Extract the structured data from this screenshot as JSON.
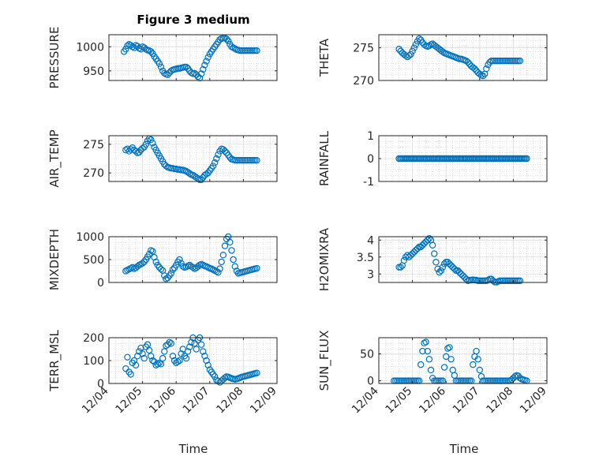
{
  "figure": {
    "title": "Figure 3 medium"
  },
  "colors": {
    "marker": "#0072BD",
    "axis": "#262626",
    "grid": "#c8c8c8"
  },
  "x_axis": {
    "label": "Time",
    "tick_labels": [
      "12/04",
      "12/05",
      "12/06",
      "12/07",
      "12/08",
      "12/09"
    ]
  },
  "chart_data": [
    {
      "type": "scatter",
      "id": "pressure",
      "ylabel": "PRESSURE",
      "ylim": [
        930,
        1025
      ],
      "yticks": [
        950,
        1000
      ],
      "yticklabels": [
        "950",
        "1000"
      ],
      "xlim": [
        0,
        5
      ],
      "grid": true,
      "marker": "open-circle",
      "x": [
        0.45,
        0.5,
        0.55,
        0.6,
        0.65,
        0.7,
        0.75,
        0.8,
        0.85,
        0.9,
        0.95,
        1.0,
        1.05,
        1.1,
        1.15,
        1.2,
        1.25,
        1.3,
        1.35,
        1.4,
        1.45,
        1.5,
        1.55,
        1.6,
        1.65,
        1.7,
        1.75,
        1.8,
        1.85,
        1.9,
        1.95,
        2.0,
        2.05,
        2.1,
        2.15,
        2.2,
        2.25,
        2.3,
        2.35,
        2.4,
        2.45,
        2.5,
        2.55,
        2.6,
        2.65,
        2.7,
        2.75,
        2.8,
        2.85,
        2.9,
        2.95,
        3.0,
        3.05,
        3.1,
        3.15,
        3.2,
        3.25,
        3.3,
        3.35,
        3.4,
        3.45,
        3.5,
        3.55,
        3.6,
        3.65,
        3.7,
        3.75,
        3.8,
        3.85,
        3.9,
        3.95,
        4.0,
        4.05,
        4.1,
        4.15,
        4.2,
        4.25,
        4.3,
        4.35,
        4.4
      ],
      "y": [
        990,
        995,
        1002,
        1005,
        1003,
        1000,
        998,
        1003,
        1001,
        997,
        995,
        1000,
        998,
        995,
        993,
        992,
        990,
        986,
        980,
        975,
        970,
        965,
        958,
        950,
        945,
        943,
        942,
        946,
        950,
        952,
        953,
        954,
        955,
        955,
        956,
        957,
        958,
        958,
        955,
        950,
        946,
        944,
        945,
        942,
        938,
        935,
        944,
        953,
        962,
        970,
        978,
        985,
        990,
        995,
        1000,
        1005,
        1010,
        1015,
        1017,
        1018,
        1018,
        1016,
        1012,
        1005,
        1000,
        998,
        996,
        994,
        993,
        992,
        992,
        992,
        992,
        992,
        992,
        992,
        992,
        992,
        992,
        992
      ]
    },
    {
      "type": "scatter",
      "id": "theta",
      "ylabel": "THETA",
      "ylim": [
        270,
        277
      ],
      "yticks": [
        270,
        275
      ],
      "yticklabels": [
        "270",
        "275"
      ],
      "xlim": [
        0,
        5
      ],
      "grid": true,
      "marker": "open-circle",
      "x": [
        0.6,
        0.65,
        0.7,
        0.75,
        0.8,
        0.85,
        0.9,
        0.95,
        1.0,
        1.05,
        1.1,
        1.15,
        1.2,
        1.25,
        1.3,
        1.35,
        1.4,
        1.45,
        1.5,
        1.55,
        1.6,
        1.65,
        1.7,
        1.75,
        1.8,
        1.85,
        1.9,
        1.95,
        2.0,
        2.05,
        2.1,
        2.15,
        2.2,
        2.25,
        2.3,
        2.35,
        2.4,
        2.45,
        2.5,
        2.55,
        2.6,
        2.65,
        2.7,
        2.75,
        2.8,
        2.85,
        2.9,
        2.95,
        3.0,
        3.05,
        3.1,
        3.15,
        3.2,
        3.25,
        3.3,
        3.35,
        3.4,
        3.45,
        3.5,
        3.55,
        3.6,
        3.65,
        3.7,
        3.75,
        3.8,
        3.85,
        3.9,
        3.95,
        4.0,
        4.05,
        4.1,
        4.15,
        4.2
      ],
      "y": [
        274.8,
        274.5,
        274.2,
        274.0,
        273.8,
        273.6,
        273.8,
        274.0,
        274.5,
        275.0,
        275.5,
        276.0,
        276.4,
        276.2,
        275.8,
        275.5,
        275.3,
        275.2,
        275.3,
        275.5,
        275.6,
        275.4,
        275.2,
        275.0,
        274.8,
        274.6,
        274.4,
        274.2,
        274.1,
        274.0,
        273.9,
        273.8,
        273.7,
        273.6,
        273.5,
        273.4,
        273.3,
        273.3,
        273.2,
        273.1,
        273.0,
        272.8,
        272.5,
        272.2,
        272.0,
        271.8,
        271.5,
        271.2,
        271.0,
        270.8,
        270.7,
        271.0,
        271.8,
        272.4,
        272.8,
        273.0,
        273.0,
        273.0,
        273.0,
        273.0,
        273.0,
        273.0,
        273.0,
        273.0,
        273.0,
        273.0,
        273.0,
        273.0,
        273.0,
        273.0,
        273.0,
        273.0,
        273.0
      ]
    },
    {
      "type": "scatter",
      "id": "air-temp",
      "ylabel": "AIR_TEMP",
      "ylim": [
        268.5,
        276.5
      ],
      "yticks": [
        270,
        275
      ],
      "yticklabels": [
        "270",
        "275"
      ],
      "xlim": [
        0,
        5
      ],
      "grid": true,
      "marker": "open-circle",
      "x": [
        0.5,
        0.55,
        0.6,
        0.65,
        0.7,
        0.75,
        0.8,
        0.85,
        0.9,
        0.95,
        1.0,
        1.05,
        1.1,
        1.15,
        1.2,
        1.25,
        1.3,
        1.35,
        1.4,
        1.45,
        1.5,
        1.55,
        1.6,
        1.65,
        1.7,
        1.75,
        1.8,
        1.85,
        1.9,
        1.95,
        2.0,
        2.05,
        2.1,
        2.15,
        2.2,
        2.25,
        2.3,
        2.35,
        2.4,
        2.45,
        2.5,
        2.55,
        2.6,
        2.65,
        2.7,
        2.75,
        2.8,
        2.85,
        2.9,
        2.95,
        3.0,
        3.05,
        3.1,
        3.15,
        3.2,
        3.25,
        3.3,
        3.35,
        3.4,
        3.45,
        3.5,
        3.55,
        3.6,
        3.65,
        3.7,
        3.75,
        3.8,
        3.85,
        3.9,
        3.95,
        4.0,
        4.05,
        4.1,
        4.15,
        4.2,
        4.25,
        4.3,
        4.35,
        4.4
      ],
      "y": [
        274.0,
        274.2,
        273.8,
        274.1,
        274.4,
        274.0,
        273.8,
        273.5,
        273.6,
        274.0,
        274.3,
        274.5,
        275.0,
        275.6,
        276.0,
        275.8,
        275.2,
        274.5,
        274.0,
        273.5,
        273.0,
        272.5,
        272.0,
        271.5,
        271.2,
        271.0,
        270.9,
        270.8,
        270.8,
        270.7,
        270.7,
        270.6,
        270.6,
        270.5,
        270.5,
        270.4,
        270.3,
        270.1,
        269.9,
        269.7,
        269.6,
        269.4,
        269.2,
        269.0,
        268.8,
        268.8,
        269.2,
        269.6,
        269.8,
        270.0,
        270.4,
        270.8,
        271.2,
        271.8,
        272.5,
        273.2,
        273.8,
        274.2,
        274.1,
        273.8,
        273.5,
        273.1,
        272.7,
        272.4,
        272.3,
        272.2,
        272.2,
        272.2,
        272.2,
        272.2,
        272.2,
        272.2,
        272.2,
        272.2,
        272.2,
        272.2,
        272.2,
        272.2,
        272.2
      ]
    },
    {
      "type": "scatter",
      "id": "rainfall",
      "ylabel": "RAINFALL",
      "ylim": [
        -1,
        1
      ],
      "yticks": [
        -1,
        0,
        1
      ],
      "yticklabels": [
        "-1",
        "0",
        "1"
      ],
      "xlim": [
        0,
        5
      ],
      "grid": true,
      "marker": "open-circle",
      "x_range": [
        0.6,
        4.4
      ],
      "x_step": 0.04,
      "constant_y": 0
    },
    {
      "type": "scatter",
      "id": "mixdepth",
      "ylabel": "MIXDEPTH",
      "ylim": [
        0,
        1000
      ],
      "yticks": [
        0,
        500,
        1000
      ],
      "yticklabels": [
        "0",
        "500",
        "1000"
      ],
      "xlim": [
        0,
        5
      ],
      "grid": true,
      "marker": "open-circle",
      "x": [
        0.5,
        0.55,
        0.6,
        0.65,
        0.7,
        0.75,
        0.8,
        0.85,
        0.9,
        0.95,
        1.0,
        1.05,
        1.1,
        1.15,
        1.2,
        1.25,
        1.3,
        1.35,
        1.4,
        1.45,
        1.5,
        1.55,
        1.6,
        1.65,
        1.7,
        1.75,
        1.8,
        1.85,
        1.9,
        1.95,
        2.0,
        2.05,
        2.1,
        2.15,
        2.2,
        2.25,
        2.3,
        2.35,
        2.4,
        2.45,
        2.5,
        2.55,
        2.6,
        2.65,
        2.7,
        2.75,
        2.8,
        2.85,
        2.9,
        2.95,
        3.0,
        3.05,
        3.1,
        3.15,
        3.2,
        3.25,
        3.3,
        3.35,
        3.4,
        3.45,
        3.5,
        3.55,
        3.6,
        3.65,
        3.7,
        3.75,
        3.8,
        3.85,
        3.9,
        3.95,
        4.0,
        4.05,
        4.1,
        4.15,
        4.2,
        4.25,
        4.3,
        4.35,
        4.4
      ],
      "y": [
        250,
        270,
        290,
        310,
        330,
        300,
        320,
        350,
        380,
        400,
        420,
        450,
        500,
        560,
        620,
        700,
        680,
        550,
        450,
        380,
        330,
        290,
        260,
        150,
        80,
        100,
        150,
        200,
        280,
        320,
        380,
        450,
        500,
        420,
        350,
        330,
        340,
        360,
        380,
        350,
        330,
        300,
        320,
        350,
        380,
        400,
        380,
        360,
        350,
        330,
        310,
        300,
        280,
        260,
        240,
        220,
        300,
        450,
        600,
        800,
        950,
        1000,
        880,
        700,
        500,
        350,
        250,
        200,
        210,
        220,
        230,
        240,
        250,
        260,
        270,
        280,
        290,
        300,
        310
      ]
    },
    {
      "type": "scatter",
      "id": "h2omixra",
      "ylabel": "H2OMIXRA",
      "ylim": [
        2.75,
        4.1
      ],
      "yticks": [
        3,
        3.5,
        4
      ],
      "yticklabels": [
        "3",
        "3.5",
        "4"
      ],
      "xlim": [
        0,
        5
      ],
      "grid": true,
      "marker": "open-circle",
      "x": [
        0.6,
        0.65,
        0.7,
        0.75,
        0.8,
        0.85,
        0.9,
        0.95,
        1.0,
        1.05,
        1.1,
        1.15,
        1.2,
        1.25,
        1.3,
        1.35,
        1.4,
        1.45,
        1.5,
        1.55,
        1.6,
        1.65,
        1.7,
        1.75,
        1.8,
        1.85,
        1.9,
        1.95,
        2.0,
        2.05,
        2.1,
        2.15,
        2.2,
        2.25,
        2.3,
        2.35,
        2.4,
        2.45,
        2.5,
        2.55,
        2.6,
        2.65,
        2.7,
        2.75,
        2.8,
        2.85,
        2.9,
        2.95,
        3.0,
        3.05,
        3.1,
        3.15,
        3.2,
        3.25,
        3.3,
        3.35,
        3.4,
        3.45,
        3.5,
        3.55,
        3.6,
        3.65,
        3.7,
        3.75,
        3.8,
        3.85,
        3.9,
        3.95,
        4.0,
        4.05,
        4.1,
        4.15,
        4.2
      ],
      "y": [
        3.2,
        3.2,
        3.25,
        3.4,
        3.5,
        3.55,
        3.5,
        3.55,
        3.6,
        3.65,
        3.7,
        3.75,
        3.8,
        3.8,
        3.85,
        3.9,
        3.95,
        4.0,
        4.05,
        4.0,
        3.85,
        3.6,
        3.35,
        3.15,
        3.05,
        3.1,
        3.2,
        3.3,
        3.35,
        3.35,
        3.3,
        3.25,
        3.2,
        3.15,
        3.1,
        3.1,
        3.05,
        3.0,
        2.95,
        2.9,
        2.85,
        2.8,
        2.82,
        2.82,
        2.83,
        2.82,
        2.82,
        2.8,
        2.8,
        2.8,
        2.8,
        2.8,
        2.8,
        2.82,
        2.85,
        2.85,
        2.8,
        2.76,
        2.76,
        2.78,
        2.8,
        2.8,
        2.8,
        2.8,
        2.8,
        2.8,
        2.8,
        2.8,
        2.8,
        2.8,
        2.8,
        2.8,
        2.8
      ]
    },
    {
      "type": "scatter",
      "id": "terr-msl",
      "ylabel": "TERR_MSL",
      "ylim": [
        0,
        200
      ],
      "yticks": [
        0,
        100,
        200
      ],
      "yticklabels": [
        "0",
        "100",
        "200"
      ],
      "xlim": [
        0,
        5
      ],
      "grid": true,
      "marker": "open-circle",
      "x": [
        0.5,
        0.55,
        0.6,
        0.65,
        0.7,
        0.75,
        0.8,
        0.85,
        0.9,
        0.95,
        1.0,
        1.05,
        1.1,
        1.15,
        1.2,
        1.25,
        1.3,
        1.35,
        1.4,
        1.45,
        1.5,
        1.55,
        1.6,
        1.65,
        1.7,
        1.75,
        1.8,
        1.85,
        1.9,
        1.95,
        2.0,
        2.05,
        2.1,
        2.15,
        2.2,
        2.25,
        2.3,
        2.35,
        2.4,
        2.45,
        2.5,
        2.55,
        2.6,
        2.65,
        2.7,
        2.75,
        2.8,
        2.85,
        2.9,
        2.95,
        3.0,
        3.05,
        3.1,
        3.15,
        3.2,
        3.25,
        3.3,
        3.35,
        3.4,
        3.45,
        3.5,
        3.55,
        3.6,
        3.65,
        3.7,
        3.75,
        3.8,
        3.85,
        3.9,
        3.95,
        4.0,
        4.05,
        4.1,
        4.15,
        4.2,
        4.25,
        4.3,
        4.35,
        4.4
      ],
      "y": [
        65,
        115,
        50,
        40,
        90,
        100,
        80,
        120,
        140,
        155,
        130,
        110,
        160,
        170,
        145,
        120,
        100,
        95,
        80,
        85,
        90,
        85,
        110,
        140,
        165,
        170,
        180,
        175,
        120,
        100,
        90,
        95,
        100,
        130,
        150,
        120,
        110,
        140,
        160,
        180,
        200,
        175,
        150,
        190,
        200,
        170,
        140,
        120,
        100,
        80,
        60,
        50,
        40,
        30,
        15,
        10,
        5,
        12,
        18,
        25,
        30,
        28,
        25,
        22,
        20,
        18,
        20,
        22,
        25,
        28,
        30,
        32,
        34,
        36,
        38,
        40,
        42,
        44,
        46
      ]
    },
    {
      "type": "scatter",
      "id": "sun-flux",
      "ylabel": "SUN_FLUX",
      "ylim": [
        -5,
        80
      ],
      "yticks": [
        0,
        50
      ],
      "yticklabels": [
        "0",
        "50"
      ],
      "xlim": [
        0,
        5
      ],
      "grid": true,
      "marker": "open-circle",
      "x": [
        0.45,
        0.5,
        0.55,
        0.6,
        0.65,
        0.7,
        0.75,
        0.8,
        0.85,
        0.9,
        0.95,
        1.0,
        1.05,
        1.1,
        1.15,
        1.2,
        1.25,
        1.3,
        1.35,
        1.4,
        1.45,
        1.5,
        1.55,
        1.6,
        1.65,
        1.7,
        1.75,
        1.8,
        1.85,
        1.9,
        1.95,
        2.0,
        2.05,
        2.1,
        2.15,
        2.2,
        2.25,
        2.3,
        2.35,
        2.4,
        2.45,
        2.5,
        2.55,
        2.6,
        2.65,
        2.7,
        2.75,
        2.8,
        2.85,
        2.9,
        2.95,
        3.0,
        3.05,
        3.1,
        3.15,
        3.2,
        3.25,
        3.3,
        3.35,
        3.4,
        3.45,
        3.5,
        3.55,
        3.6,
        3.65,
        3.7,
        3.75,
        3.8,
        3.85,
        3.9,
        3.95,
        4.0,
        4.05,
        4.1,
        4.15,
        4.2,
        4.25,
        4.3,
        4.35,
        4.4
      ],
      "y": [
        0,
        0,
        0,
        0,
        0,
        0,
        0,
        0,
        0,
        0,
        0,
        0,
        0,
        0,
        0,
        0,
        30,
        55,
        70,
        72,
        55,
        40,
        20,
        5,
        0,
        0,
        0,
        0,
        0,
        0,
        25,
        45,
        60,
        62,
        40,
        20,
        10,
        0,
        0,
        0,
        0,
        0,
        0,
        0,
        0,
        0,
        0,
        30,
        45,
        55,
        40,
        20,
        8,
        0,
        0,
        0,
        0,
        0,
        0,
        0,
        0,
        0,
        0,
        0,
        0,
        0,
        0,
        0,
        0,
        0,
        2,
        5,
        8,
        10,
        9,
        5,
        3,
        2,
        1,
        0
      ]
    }
  ]
}
